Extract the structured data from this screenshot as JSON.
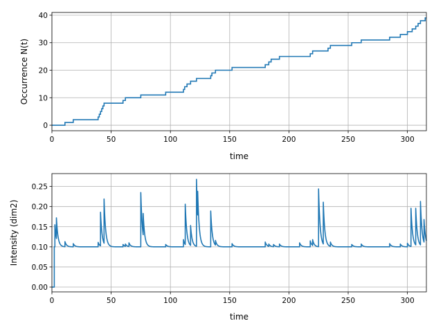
{
  "colors": {
    "series": "#1f77b4",
    "grid": "#b0b0b0",
    "axes": "#000000"
  },
  "chart_data": [
    {
      "type": "line",
      "step": true,
      "xlabel": "time",
      "ylabel": "Occurrence N(t)",
      "xlim": [
        0,
        316
      ],
      "ylim": [
        -2,
        41
      ],
      "xticks": [
        0,
        50,
        100,
        150,
        200,
        250,
        300
      ],
      "yticks": [
        0,
        10,
        20,
        30,
        40
      ],
      "grid": true,
      "event_times": [
        11,
        18,
        39,
        40,
        41,
        42,
        43,
        44,
        60,
        62,
        75,
        96,
        111,
        112,
        114,
        117,
        122,
        134,
        135,
        138,
        152,
        180,
        183,
        185,
        192,
        218,
        220,
        233,
        235,
        253,
        261,
        285,
        294,
        300,
        304,
        307,
        309,
        311,
        315
      ]
    },
    {
      "type": "line",
      "xlabel": "time",
      "ylabel": "Intensity (dim2)",
      "xlim": [
        0,
        316
      ],
      "ylim": [
        -0.012,
        0.282
      ],
      "xticks": [
        0,
        50,
        100,
        150,
        200,
        250,
        300
      ],
      "yticks": [
        0.0,
        0.05,
        0.1,
        0.15,
        0.2,
        0.25
      ],
      "ytick_labels": [
        "0.00",
        "0.05",
        "0.10",
        "0.15",
        "0.20",
        "0.25"
      ],
      "grid": true,
      "baseline": 0.1,
      "start_level": 0.0,
      "start_until": 2,
      "spikes": [
        {
          "t": 2.5,
          "peak": 0.155
        },
        {
          "t": 3.8,
          "peak": 0.172
        },
        {
          "t": 11,
          "peak": 0.113
        },
        {
          "t": 18,
          "peak": 0.108
        },
        {
          "t": 39,
          "peak": 0.111
        },
        {
          "t": 41,
          "peak": 0.186
        },
        {
          "t": 44,
          "peak": 0.219
        },
        {
          "t": 60,
          "peak": 0.106
        },
        {
          "t": 62,
          "peak": 0.107
        },
        {
          "t": 65,
          "peak": 0.11
        },
        {
          "t": 75,
          "peak": 0.235
        },
        {
          "t": 77,
          "peak": 0.183
        },
        {
          "t": 96,
          "peak": 0.106
        },
        {
          "t": 111,
          "peak": 0.118
        },
        {
          "t": 112.5,
          "peak": 0.206
        },
        {
          "t": 117,
          "peak": 0.153
        },
        {
          "t": 122,
          "peak": 0.268
        },
        {
          "t": 123,
          "peak": 0.238
        },
        {
          "t": 134,
          "peak": 0.189
        },
        {
          "t": 138,
          "peak": 0.116
        },
        {
          "t": 152,
          "peak": 0.108
        },
        {
          "t": 180,
          "peak": 0.112
        },
        {
          "t": 183,
          "peak": 0.107
        },
        {
          "t": 187,
          "peak": 0.106
        },
        {
          "t": 192,
          "peak": 0.107
        },
        {
          "t": 209,
          "peak": 0.11
        },
        {
          "t": 218,
          "peak": 0.115
        },
        {
          "t": 220,
          "peak": 0.118
        },
        {
          "t": 225,
          "peak": 0.244
        },
        {
          "t": 229,
          "peak": 0.211
        },
        {
          "t": 235,
          "peak": 0.112
        },
        {
          "t": 253,
          "peak": 0.106
        },
        {
          "t": 261,
          "peak": 0.107
        },
        {
          "t": 285,
          "peak": 0.108
        },
        {
          "t": 294,
          "peak": 0.107
        },
        {
          "t": 300,
          "peak": 0.109
        },
        {
          "t": 303,
          "peak": 0.196
        },
        {
          "t": 307,
          "peak": 0.196
        },
        {
          "t": 311,
          "peak": 0.213
        },
        {
          "t": 314,
          "peak": 0.168
        }
      ]
    }
  ]
}
